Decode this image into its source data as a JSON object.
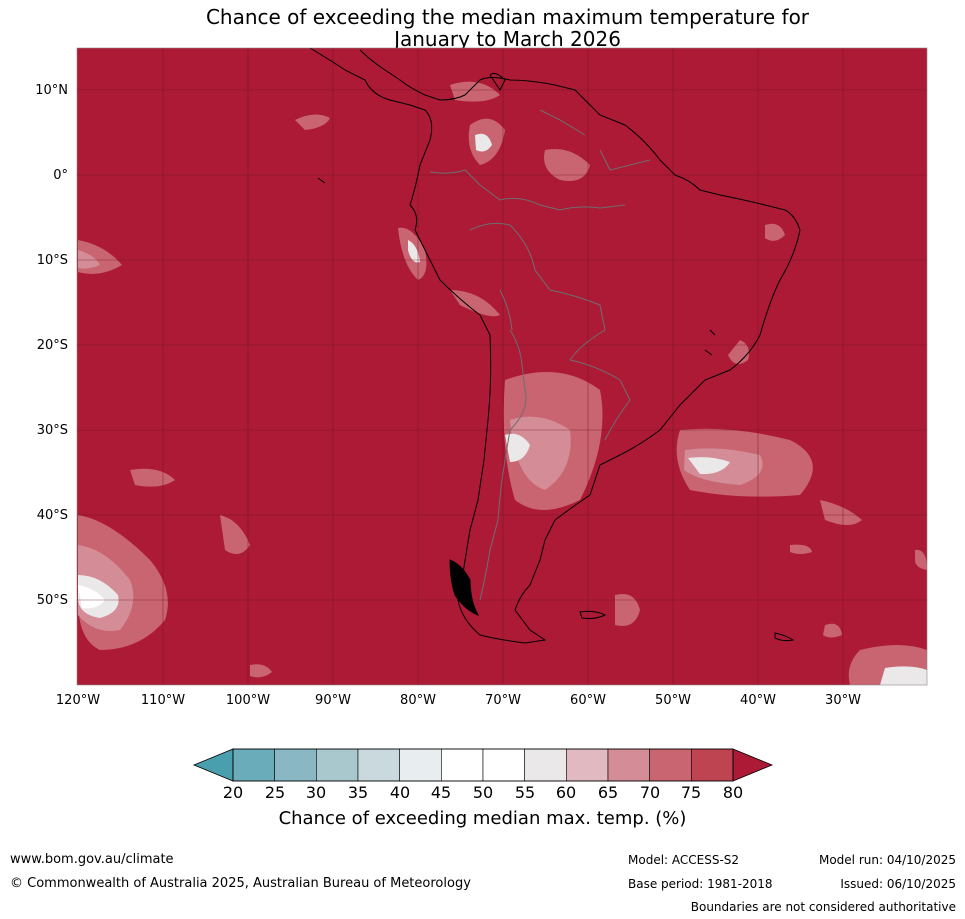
{
  "title": {
    "line1": "Chance of exceeding the median maximum temperature for",
    "line2": "January to March 2026"
  },
  "latitude_labels": [
    "10°N",
    "0°",
    "10°S",
    "20°S",
    "30°S",
    "40°S",
    "50°S"
  ],
  "longitude_labels": [
    "120°W",
    "110°W",
    "100°W",
    "90°W",
    "80°W",
    "70°W",
    "60°W",
    "50°W",
    "40°W",
    "30°W"
  ],
  "colorbar": {
    "ticks": [
      "20",
      "25",
      "30",
      "35",
      "40",
      "45",
      "50",
      "55",
      "60",
      "65",
      "70",
      "75",
      "80"
    ],
    "colors": [
      "#4a9fae",
      "#6bacbb",
      "#8ab7c4",
      "#a9c8ce",
      "#c9d9dd",
      "#e8eef0",
      "#ffffff",
      "#ffffff",
      "#ebe8e9",
      "#e1b9c0",
      "#d48c96",
      "#c96571",
      "#bf4452",
      "#ad1a36"
    ],
    "label": "Chance of exceeding median max. temp. (%)"
  },
  "colors": {
    "dominant": "#ad1a36",
    "coast": "#000000",
    "border": "#6e6e6e"
  },
  "footer": {
    "url": "www.bom.gov.au/climate",
    "copyright": "© Commonwealth of Australia 2025, Australian Bureau of Meteorology",
    "model": "Model: ACCESS-S2",
    "base_period": "Base period: 1981-2018",
    "model_run": "Model run: 04/10/2025",
    "issued": "Issued: 06/10/2025",
    "disclaimer": "Boundaries are not considered authoritative"
  }
}
